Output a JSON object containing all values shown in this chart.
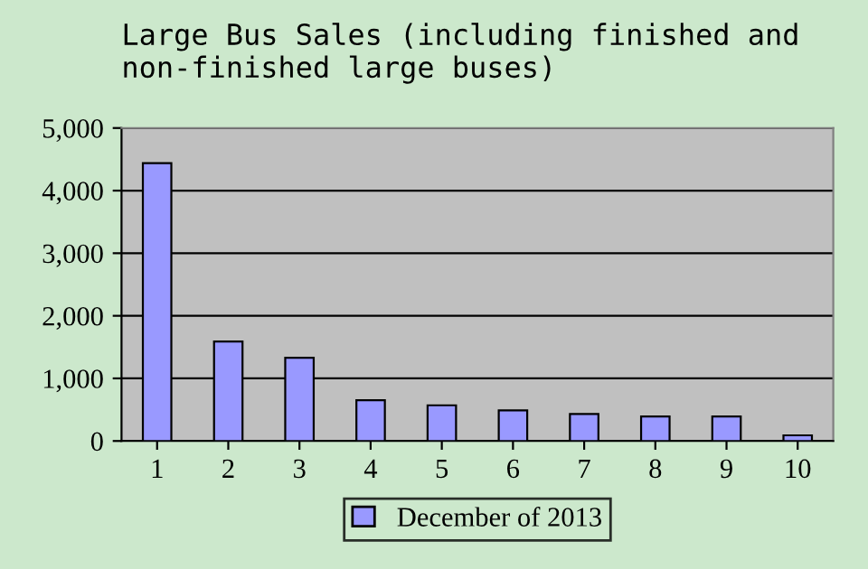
{
  "chart_data": {
    "type": "bar",
    "title": "Large Bus Sales (including finished and non-finished large buses)",
    "categories": [
      "1",
      "2",
      "3",
      "4",
      "5",
      "6",
      "7",
      "8",
      "9",
      "10"
    ],
    "series": [
      {
        "name": "December of 2013",
        "color": "#9999ff",
        "values": [
          4440,
          1590,
          1330,
          650,
          570,
          490,
          430,
          390,
          390,
          90
        ]
      }
    ],
    "ylim": [
      0,
      5000
    ],
    "yticks": [
      {
        "value": 0,
        "label": "0"
      },
      {
        "value": 1000,
        "label": "1,000"
      },
      {
        "value": 2000,
        "label": "2,000"
      },
      {
        "value": 3000,
        "label": "3,000"
      },
      {
        "value": 4000,
        "label": "4,000"
      },
      {
        "value": 5000,
        "label": "5,000"
      }
    ],
    "grid": "y",
    "legend": "bottom"
  }
}
